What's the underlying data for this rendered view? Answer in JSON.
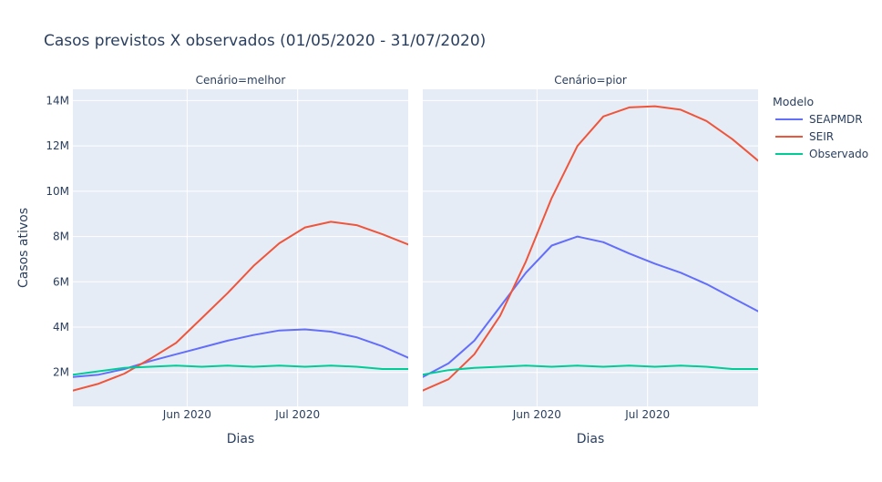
{
  "chart_data": {
    "type": "line",
    "title": "Casos previstos X observados (01/05/2020 - 31/07/2020)",
    "ylabel": "Casos ativos",
    "xlabel": "Dias",
    "xlim": [
      "2020-05-01",
      "2020-07-31"
    ],
    "ylim": [
      500000,
      14500000
    ],
    "y_ticks": [
      2000000,
      4000000,
      6000000,
      8000000,
      10000000,
      12000000,
      14000000
    ],
    "y_tick_labels": [
      "2M",
      "4M",
      "6M",
      "8M",
      "10M",
      "12M",
      "14M"
    ],
    "x_ticks": [
      "2020-06-01",
      "2020-07-01"
    ],
    "x_tick_labels": [
      "Jun 2020",
      "Jul 2020"
    ],
    "grid": true,
    "legend": {
      "title": "Modelo",
      "position": "right"
    },
    "series_colors": {
      "SEAPMDR": "#636efa",
      "SEIR": "#ef553b",
      "Observado": "#00cc96"
    },
    "facets": [
      {
        "label": "Cenário=melhor",
        "series": [
          {
            "name": "SEAPMDR",
            "x": [
              "2020-05-01",
              "2020-05-08",
              "2020-05-15",
              "2020-05-22",
              "2020-05-29",
              "2020-06-05",
              "2020-06-12",
              "2020-06-19",
              "2020-06-26",
              "2020-07-03",
              "2020-07-10",
              "2020-07-17",
              "2020-07-24",
              "2020-07-31"
            ],
            "y": [
              1800000,
              1900000,
              2150000,
              2500000,
              2800000,
              3100000,
              3400000,
              3650000,
              3850000,
              3900000,
              3800000,
              3550000,
              3150000,
              2650000
            ]
          },
          {
            "name": "SEIR",
            "x": [
              "2020-05-01",
              "2020-05-08",
              "2020-05-15",
              "2020-05-22",
              "2020-05-29",
              "2020-06-05",
              "2020-06-12",
              "2020-06-19",
              "2020-06-26",
              "2020-07-03",
              "2020-07-10",
              "2020-07-17",
              "2020-07-24",
              "2020-07-31"
            ],
            "y": [
              1200000,
              1500000,
              1950000,
              2600000,
              3300000,
              4400000,
              5500000,
              6700000,
              7700000,
              8400000,
              8650000,
              8500000,
              8100000,
              7650000
            ]
          },
          {
            "name": "Observado",
            "x": [
              "2020-05-01",
              "2020-05-08",
              "2020-05-15",
              "2020-05-22",
              "2020-05-29",
              "2020-06-05",
              "2020-06-12",
              "2020-06-19",
              "2020-06-26",
              "2020-07-03",
              "2020-07-10",
              "2020-07-17",
              "2020-07-24",
              "2020-07-31"
            ],
            "y": [
              1900000,
              2050000,
              2200000,
              2250000,
              2300000,
              2250000,
              2300000,
              2250000,
              2300000,
              2250000,
              2300000,
              2250000,
              2150000,
              2150000
            ]
          }
        ]
      },
      {
        "label": "Cenário=pior",
        "series": [
          {
            "name": "SEAPMDR",
            "x": [
              "2020-05-01",
              "2020-05-08",
              "2020-05-15",
              "2020-05-22",
              "2020-05-29",
              "2020-06-05",
              "2020-06-12",
              "2020-06-19",
              "2020-06-26",
              "2020-07-03",
              "2020-07-10",
              "2020-07-17",
              "2020-07-24",
              "2020-07-31"
            ],
            "y": [
              1800000,
              2400000,
              3400000,
              4900000,
              6400000,
              7600000,
              8000000,
              7750000,
              7250000,
              6800000,
              6400000,
              5900000,
              5300000,
              4700000
            ]
          },
          {
            "name": "SEIR",
            "x": [
              "2020-05-01",
              "2020-05-08",
              "2020-05-15",
              "2020-05-22",
              "2020-05-29",
              "2020-06-05",
              "2020-06-12",
              "2020-06-19",
              "2020-06-26",
              "2020-07-03",
              "2020-07-10",
              "2020-07-17",
              "2020-07-24",
              "2020-07-31"
            ],
            "y": [
              1200000,
              1700000,
              2800000,
              4500000,
              6900000,
              9700000,
              12000000,
              13300000,
              13700000,
              13750000,
              13600000,
              13100000,
              12300000,
              11350000
            ]
          },
          {
            "name": "Observado",
            "x": [
              "2020-05-01",
              "2020-05-08",
              "2020-05-15",
              "2020-05-22",
              "2020-05-29",
              "2020-06-05",
              "2020-06-12",
              "2020-06-19",
              "2020-06-26",
              "2020-07-03",
              "2020-07-10",
              "2020-07-17",
              "2020-07-24",
              "2020-07-31"
            ],
            "y": [
              1900000,
              2100000,
              2200000,
              2250000,
              2300000,
              2250000,
              2300000,
              2250000,
              2300000,
              2250000,
              2300000,
              2250000,
              2150000,
              2150000
            ]
          }
        ]
      }
    ]
  }
}
